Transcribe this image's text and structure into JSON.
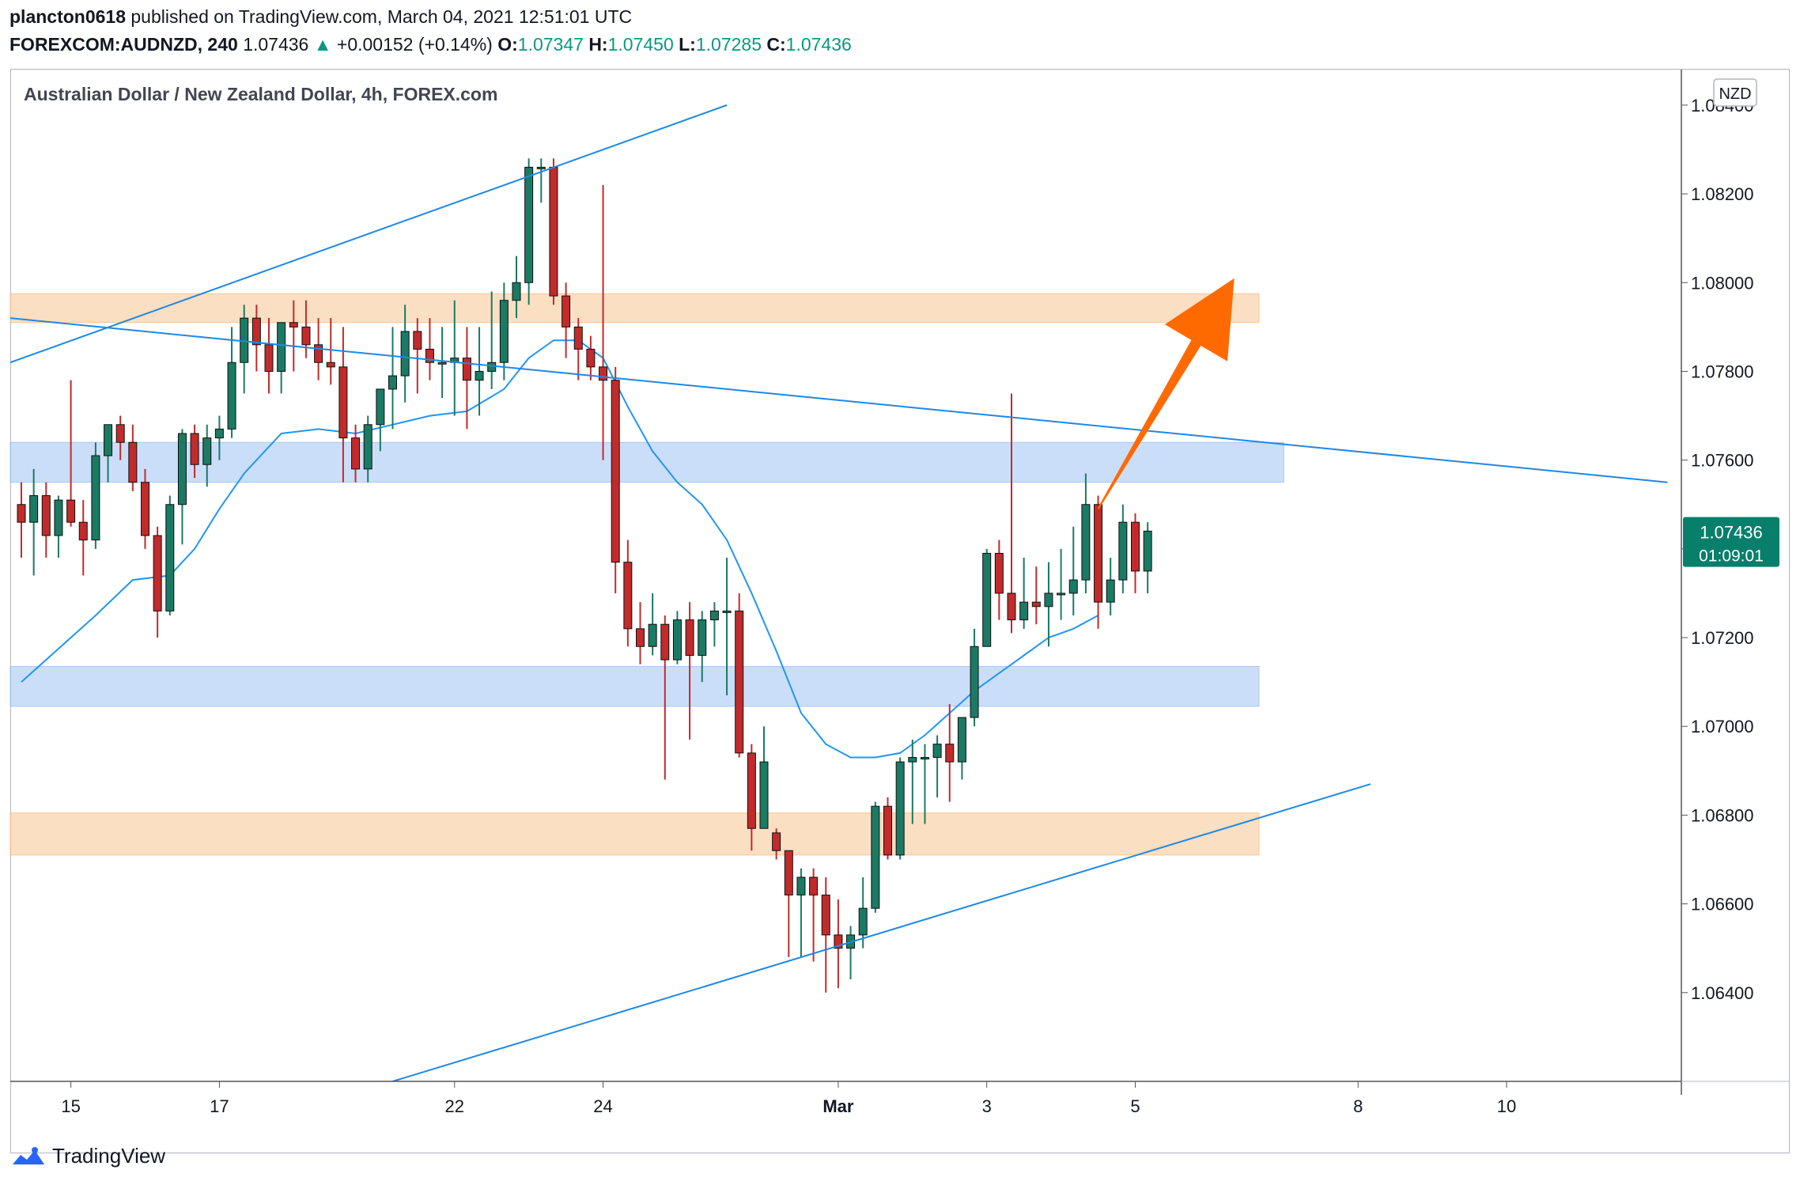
{
  "header": {
    "user": "plancton0618",
    "published_text": "published on TradingView.com, March 04, 2021 12:51:01 UTC",
    "symbol": "FOREXCOM:AUDNZD, 240",
    "last": "1.07436",
    "change_arrow": "▲",
    "change": "+0.00152 (+0.14%)",
    "o_label": "O:",
    "o_value": "1.07347",
    "h_label": "H:",
    "h_value": "1.07450",
    "l_label": "L:",
    "l_value": "1.07285",
    "c_label": "C:",
    "c_value": "1.07436"
  },
  "chart_title": "Australian Dollar / New Zealand Dollar, 4h, FOREX.com",
  "currency_badge": "NZD",
  "price_tag": {
    "price": "1.07436",
    "countdown": "01:09:01"
  },
  "brand": "TradingView",
  "colors": {
    "up": "#1b7a63",
    "down": "#c12b2b",
    "ma_line": "#2196f3",
    "trendline": "#1e88e5",
    "supply_zone": "#f9c99a",
    "demand_zone": "#a8c8f5",
    "arrow": "#ff6a00",
    "price_tag": "#087f6a"
  },
  "chart_data": {
    "type": "candlestick",
    "title": "Australian Dollar / New Zealand Dollar, 4h, FOREX.com",
    "ylim": [
      1.062,
      1.0848
    ],
    "y_ticks": [
      "1.08400",
      "1.08200",
      "1.08000",
      "1.07800",
      "1.07600",
      "1.07400",
      "1.07200",
      "1.07000",
      "1.06800",
      "1.06600",
      "1.06400"
    ],
    "x_ticks": [
      {
        "label": "15",
        "i": 4
      },
      {
        "label": "17",
        "i": 16
      },
      {
        "label": "22",
        "i": 35
      },
      {
        "label": "24",
        "i": 47
      },
      {
        "label": "Mar",
        "i": 66
      },
      {
        "label": "3",
        "i": 78
      },
      {
        "label": "5",
        "i": 90
      },
      {
        "label": "8",
        "i": 108
      },
      {
        "label": "10",
        "i": 120
      }
    ],
    "candles": [
      [
        1.075,
        1.0755,
        1.0738,
        1.0746
      ],
      [
        1.0746,
        1.0758,
        1.0734,
        1.0752
      ],
      [
        1.0752,
        1.0755,
        1.0738,
        1.0743
      ],
      [
        1.0743,
        1.0752,
        1.0738,
        1.0751
      ],
      [
        1.0751,
        1.0778,
        1.0745,
        1.0746
      ],
      [
        1.0746,
        1.0751,
        1.0734,
        1.0742
      ],
      [
        1.0742,
        1.0764,
        1.074,
        1.0761
      ],
      [
        1.0761,
        1.0768,
        1.0755,
        1.0768
      ],
      [
        1.0768,
        1.077,
        1.076,
        1.0764
      ],
      [
        1.0764,
        1.0768,
        1.0753,
        1.0755
      ],
      [
        1.0755,
        1.0758,
        1.074,
        1.0743
      ],
      [
        1.0743,
        1.0745,
        1.072,
        1.0726
      ],
      [
        1.0726,
        1.0752,
        1.0725,
        1.075
      ],
      [
        1.075,
        1.0767,
        1.0741,
        1.0766
      ],
      [
        1.0766,
        1.0768,
        1.0756,
        1.0759
      ],
      [
        1.0759,
        1.0768,
        1.0754,
        1.0765
      ],
      [
        1.0765,
        1.077,
        1.076,
        1.0767
      ],
      [
        1.0767,
        1.079,
        1.0765,
        1.0782
      ],
      [
        1.0782,
        1.0795,
        1.0775,
        1.0792
      ],
      [
        1.0792,
        1.0795,
        1.078,
        1.0786
      ],
      [
        1.0786,
        1.0792,
        1.0775,
        1.078
      ],
      [
        1.078,
        1.079,
        1.0775,
        1.0791
      ],
      [
        1.0791,
        1.0796,
        1.078,
        1.079
      ],
      [
        1.079,
        1.0796,
        1.0783,
        1.0786
      ],
      [
        1.0786,
        1.0792,
        1.0778,
        1.0782
      ],
      [
        1.0782,
        1.0792,
        1.0777,
        1.0781
      ],
      [
        1.0781,
        1.079,
        1.0755,
        1.0765
      ],
      [
        1.0765,
        1.0768,
        1.0755,
        1.0758
      ],
      [
        1.0758,
        1.077,
        1.0755,
        1.0768
      ],
      [
        1.0768,
        1.0776,
        1.0762,
        1.0776
      ],
      [
        1.0776,
        1.079,
        1.0767,
        1.0779
      ],
      [
        1.0779,
        1.0795,
        1.0773,
        1.0789
      ],
      [
        1.0789,
        1.0792,
        1.0775,
        1.0785
      ],
      [
        1.0785,
        1.0792,
        1.0778,
        1.0782
      ],
      [
        1.0782,
        1.079,
        1.0774,
        1.0782
      ],
      [
        1.0782,
        1.0796,
        1.077,
        1.0783
      ],
      [
        1.0783,
        1.079,
        1.0767,
        1.0778
      ],
      [
        1.0778,
        1.079,
        1.077,
        1.078
      ],
      [
        1.078,
        1.0798,
        1.0776,
        1.0782
      ],
      [
        1.0782,
        1.08,
        1.0778,
        1.0796
      ],
      [
        1.0796,
        1.0806,
        1.0792,
        1.08
      ],
      [
        1.08,
        1.0828,
        1.0795,
        1.0826
      ],
      [
        1.0826,
        1.0828,
        1.0818,
        1.0826
      ],
      [
        1.0826,
        1.0828,
        1.0795,
        1.0797
      ],
      [
        1.0797,
        1.08,
        1.0783,
        1.079
      ],
      [
        1.079,
        1.0792,
        1.0778,
        1.0785
      ],
      [
        1.0785,
        1.0788,
        1.0778,
        1.0781
      ],
      [
        1.0781,
        1.0822,
        1.076,
        1.0778
      ],
      [
        1.0778,
        1.0781,
        1.073,
        1.0737
      ],
      [
        1.0737,
        1.0742,
        1.0718,
        1.0722
      ],
      [
        1.0722,
        1.0728,
        1.0714,
        1.0718
      ],
      [
        1.0718,
        1.073,
        1.0716,
        1.0723
      ],
      [
        1.0723,
        1.0725,
        1.0688,
        1.0715
      ],
      [
        1.0715,
        1.0726,
        1.0714,
        1.0724
      ],
      [
        1.0724,
        1.0728,
        1.0697,
        1.0716
      ],
      [
        1.0716,
        1.0726,
        1.071,
        1.0724
      ],
      [
        1.0724,
        1.0728,
        1.0718,
        1.0726
      ],
      [
        1.0726,
        1.0738,
        1.0707,
        1.0726
      ],
      [
        1.0726,
        1.073,
        1.0693,
        1.0694
      ],
      [
        1.0694,
        1.0696,
        1.0672,
        1.0677
      ],
      [
        1.0677,
        1.07,
        1.0678,
        1.0692
      ],
      [
        1.0676,
        1.0677,
        1.067,
        1.0672
      ],
      [
        1.0672,
        1.0672,
        1.0648,
        1.0662
      ],
      [
        1.0662,
        1.0668,
        1.0648,
        1.0666
      ],
      [
        1.0666,
        1.0668,
        1.0647,
        1.0662
      ],
      [
        1.0662,
        1.0666,
        1.064,
        1.0653
      ],
      [
        1.0653,
        1.0661,
        1.0641,
        1.065
      ],
      [
        1.065,
        1.0655,
        1.0643,
        1.0653
      ],
      [
        1.0653,
        1.0666,
        1.065,
        1.0659
      ],
      [
        1.0659,
        1.0683,
        1.0658,
        1.0682
      ],
      [
        1.0682,
        1.0684,
        1.067,
        1.0671
      ],
      [
        1.0671,
        1.0693,
        1.067,
        1.0692
      ],
      [
        1.0692,
        1.0697,
        1.0678,
        1.0693
      ],
      [
        1.0693,
        1.0696,
        1.0678,
        1.0693
      ],
      [
        1.0693,
        1.0698,
        1.0684,
        1.0696
      ],
      [
        1.0696,
        1.0705,
        1.0683,
        1.0692
      ],
      [
        1.0692,
        1.07,
        1.0688,
        1.0702
      ],
      [
        1.0702,
        1.0722,
        1.07,
        1.0718
      ],
      [
        1.0718,
        1.074,
        1.0718,
        1.0739
      ],
      [
        1.0739,
        1.0742,
        1.0724,
        1.073
      ],
      [
        1.073,
        1.0775,
        1.0721,
        1.0724
      ],
      [
        1.0724,
        1.0738,
        1.0722,
        1.0728
      ],
      [
        1.0728,
        1.0736,
        1.0723,
        1.0727
      ],
      [
        1.0727,
        1.0737,
        1.0718,
        1.073
      ],
      [
        1.073,
        1.074,
        1.0724,
        1.073
      ],
      [
        1.073,
        1.0745,
        1.0725,
        1.0733
      ],
      [
        1.0733,
        1.0757,
        1.073,
        1.075
      ],
      [
        1.075,
        1.0752,
        1.0722,
        1.0728
      ],
      [
        1.0728,
        1.0738,
        1.0725,
        1.0733
      ],
      [
        1.0733,
        1.075,
        1.073,
        1.0746
      ],
      [
        1.0746,
        1.0748,
        1.073,
        1.0735
      ],
      [
        1.0735,
        1.0746,
        1.073,
        1.0744
      ]
    ],
    "moving_average": [
      [
        0,
        1.071
      ],
      [
        6,
        1.0725
      ],
      [
        9,
        1.0733
      ],
      [
        12,
        1.0734
      ],
      [
        14,
        1.074
      ],
      [
        16,
        1.0749
      ],
      [
        18,
        1.0757
      ],
      [
        21,
        1.0766
      ],
      [
        24,
        1.0767
      ],
      [
        27,
        1.0766
      ],
      [
        30,
        1.0768
      ],
      [
        33,
        1.077
      ],
      [
        36,
        1.0771
      ],
      [
        39,
        1.0776
      ],
      [
        41,
        1.0783
      ],
      [
        43,
        1.0787
      ],
      [
        45,
        1.0787
      ],
      [
        47,
        1.0783
      ],
      [
        49,
        1.0772
      ],
      [
        51,
        1.0762
      ],
      [
        53,
        1.0755
      ],
      [
        55,
        1.075
      ],
      [
        57,
        1.0742
      ],
      [
        59,
        1.073
      ],
      [
        61,
        1.0717
      ],
      [
        63,
        1.0703
      ],
      [
        65,
        1.0696
      ],
      [
        67,
        1.0693
      ],
      [
        69,
        1.0693
      ],
      [
        71,
        1.0694
      ],
      [
        73,
        1.0698
      ],
      [
        75,
        1.0703
      ],
      [
        77,
        1.0708
      ],
      [
        79,
        1.0712
      ],
      [
        81,
        1.0716
      ],
      [
        83,
        1.072
      ],
      [
        85,
        1.0722
      ],
      [
        87,
        1.0725
      ]
    ],
    "zones": [
      {
        "kind": "supply",
        "from_i": -1,
        "to_i": 100,
        "y_top": 1.07975,
        "y_bottom": 1.0791
      },
      {
        "kind": "demand",
        "from_i": -1,
        "to_i": 102,
        "y_top": 1.0764,
        "y_bottom": 1.0755
      },
      {
        "kind": "demand",
        "from_i": -1,
        "to_i": 100,
        "y_top": 1.07135,
        "y_bottom": 1.07045
      },
      {
        "kind": "supply",
        "from_i": -1,
        "to_i": 100,
        "y_top": 1.06805,
        "y_bottom": 1.0671
      }
    ],
    "trendlines": [
      {
        "from": [
          -1,
          1.0782
        ],
        "to": [
          57,
          1.084
        ]
      },
      {
        "from": [
          -1,
          1.0792
        ],
        "to": [
          133,
          1.0755
        ]
      },
      {
        "from": [
          30,
          1.062
        ],
        "to": [
          109,
          1.0687
        ]
      }
    ],
    "arrow": {
      "from": [
        87,
        1.0749
      ],
      "to": [
        98,
        1.0801
      ]
    }
  }
}
